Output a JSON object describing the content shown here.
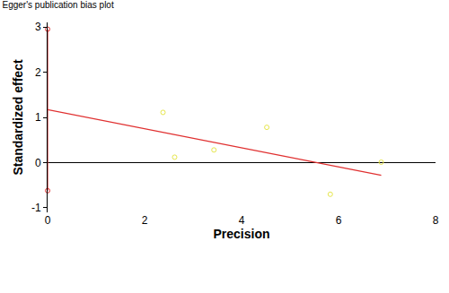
{
  "chart_data": {
    "type": "scatter",
    "title": "Egger's publication bias plot",
    "x_label": "Precision",
    "y_label": "Standardized effect",
    "xlim": [
      0,
      8
    ],
    "xticks": [
      0,
      2,
      4,
      6,
      8
    ],
    "ylim": [
      -1.1,
      3.1
    ],
    "yticks": [
      -1,
      0,
      1,
      2,
      3
    ],
    "grid": false,
    "series": [
      {
        "type": "line",
        "color": "#000000",
        "line_style": "solid",
        "x": [
          0,
          8
        ],
        "values": [
          0,
          0
        ]
      },
      {
        "type": "line",
        "color": "#e03030",
        "line_style": "solid",
        "x": [
          0,
          6.88
        ],
        "values": [
          1.17,
          -0.28
        ]
      },
      {
        "type": "line",
        "color": "#e03030",
        "line_style": "solid",
        "marker": "circle-open",
        "x": [
          0,
          0
        ],
        "values": [
          -0.62,
          2.95
        ]
      },
      {
        "type": "scatter",
        "color": "#e6e64a",
        "marker": "circle-open",
        "x": [
          2.38,
          2.62,
          3.43,
          4.52,
          5.83,
          6.88
        ],
        "values": [
          1.11,
          0.12,
          0.28,
          0.78,
          -0.7,
          0.01
        ]
      }
    ]
  }
}
